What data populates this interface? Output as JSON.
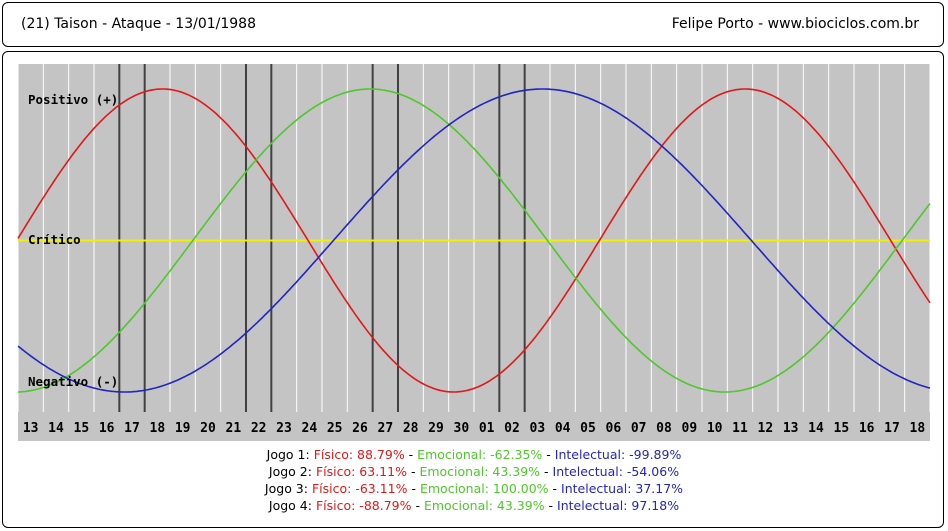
{
  "header": {
    "left": "(21)  Taison - Ataque -  13/01/1988",
    "right": "Felipe Porto   -   www.biociclos.com.br"
  },
  "chart_data": {
    "type": "line",
    "x": [
      "13",
      "14",
      "15",
      "16",
      "17",
      "18",
      "19",
      "20",
      "21",
      "22",
      "23",
      "24",
      "25",
      "26",
      "27",
      "28",
      "29",
      "30",
      "01",
      "02",
      "03",
      "04",
      "05",
      "06",
      "07",
      "08",
      "09",
      "10",
      "11",
      "12",
      "13",
      "14",
      "15",
      "16",
      "17",
      "18"
    ],
    "ylim": [
      -100,
      100
    ],
    "labels": {
      "positivo": "Positivo (+)",
      "critico": "Crítico",
      "negativo": "Negativo (-)"
    },
    "series": [
      {
        "key": "fisico",
        "color": "#e01818",
        "period": 23,
        "max_index": 5.2
      },
      {
        "key": "emocional",
        "color": "#4ec82a",
        "period": 28,
        "max_index": 13.4
      },
      {
        "key": "intelectual",
        "color": "#2424c0",
        "period": 33,
        "max_index": 20.2
      }
    ],
    "critical_color": "#f0f000",
    "grid": true,
    "markers": [
      4,
      5,
      9,
      10,
      14,
      15,
      19,
      20
    ]
  },
  "legend": {
    "games": [
      {
        "jogo": "Jogo 1:",
        "fisico": "Físico: 88.79%",
        "emocional": "Emocional: -62.35%",
        "intelectual": "Intelectual: -99.89%"
      },
      {
        "jogo": "Jogo 2:",
        "fisico": "Físico: 63.11%",
        "emocional": "Emocional: 43.39%",
        "intelectual": "Intelectual: -54.06%"
      },
      {
        "jogo": "Jogo 3:",
        "fisico": "Físico: -63.11%",
        "emocional": "Emocional: 100.00%",
        "intelectual": "Intelectual: 37.17%"
      },
      {
        "jogo": "Jogo 4:",
        "fisico": "Físico: -88.79%",
        "emocional": "Emocional: 43.39%",
        "intelectual": "Intelectual: 97.18%"
      }
    ]
  }
}
